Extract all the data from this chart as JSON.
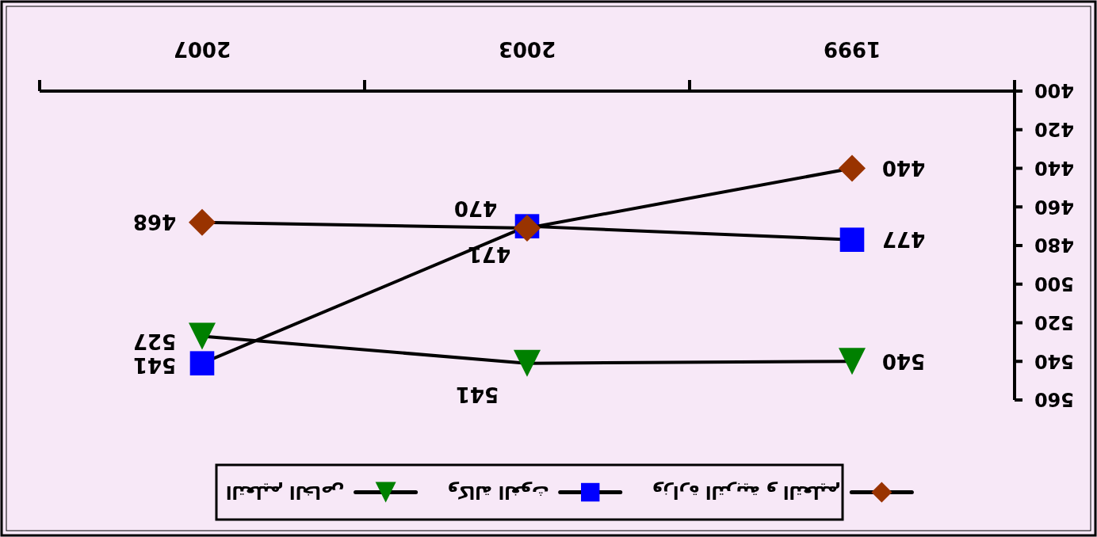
{
  "chart_data": {
    "type": "line",
    "categories": [
      "2007",
      "2003",
      "1999"
    ],
    "series": [
      {
        "name": "التعليم الخاص",
        "color": "#008000",
        "marker": "triangle",
        "values": [
          527,
          541,
          540
        ]
      },
      {
        "name": "وكالة الغوث",
        "color": "#0000ff",
        "marker": "square",
        "values": [
          541,
          470,
          477
        ]
      },
      {
        "name": "وزارة التربية و التعليم",
        "color": "#993300",
        "marker": "diamond",
        "values": [
          468,
          471,
          440
        ]
      }
    ],
    "ylim": [
      560,
      400
    ],
    "yticks": [
      400,
      420,
      440,
      460,
      480,
      500,
      520,
      540,
      560
    ],
    "data_labels": true,
    "legend": "bottom"
  }
}
